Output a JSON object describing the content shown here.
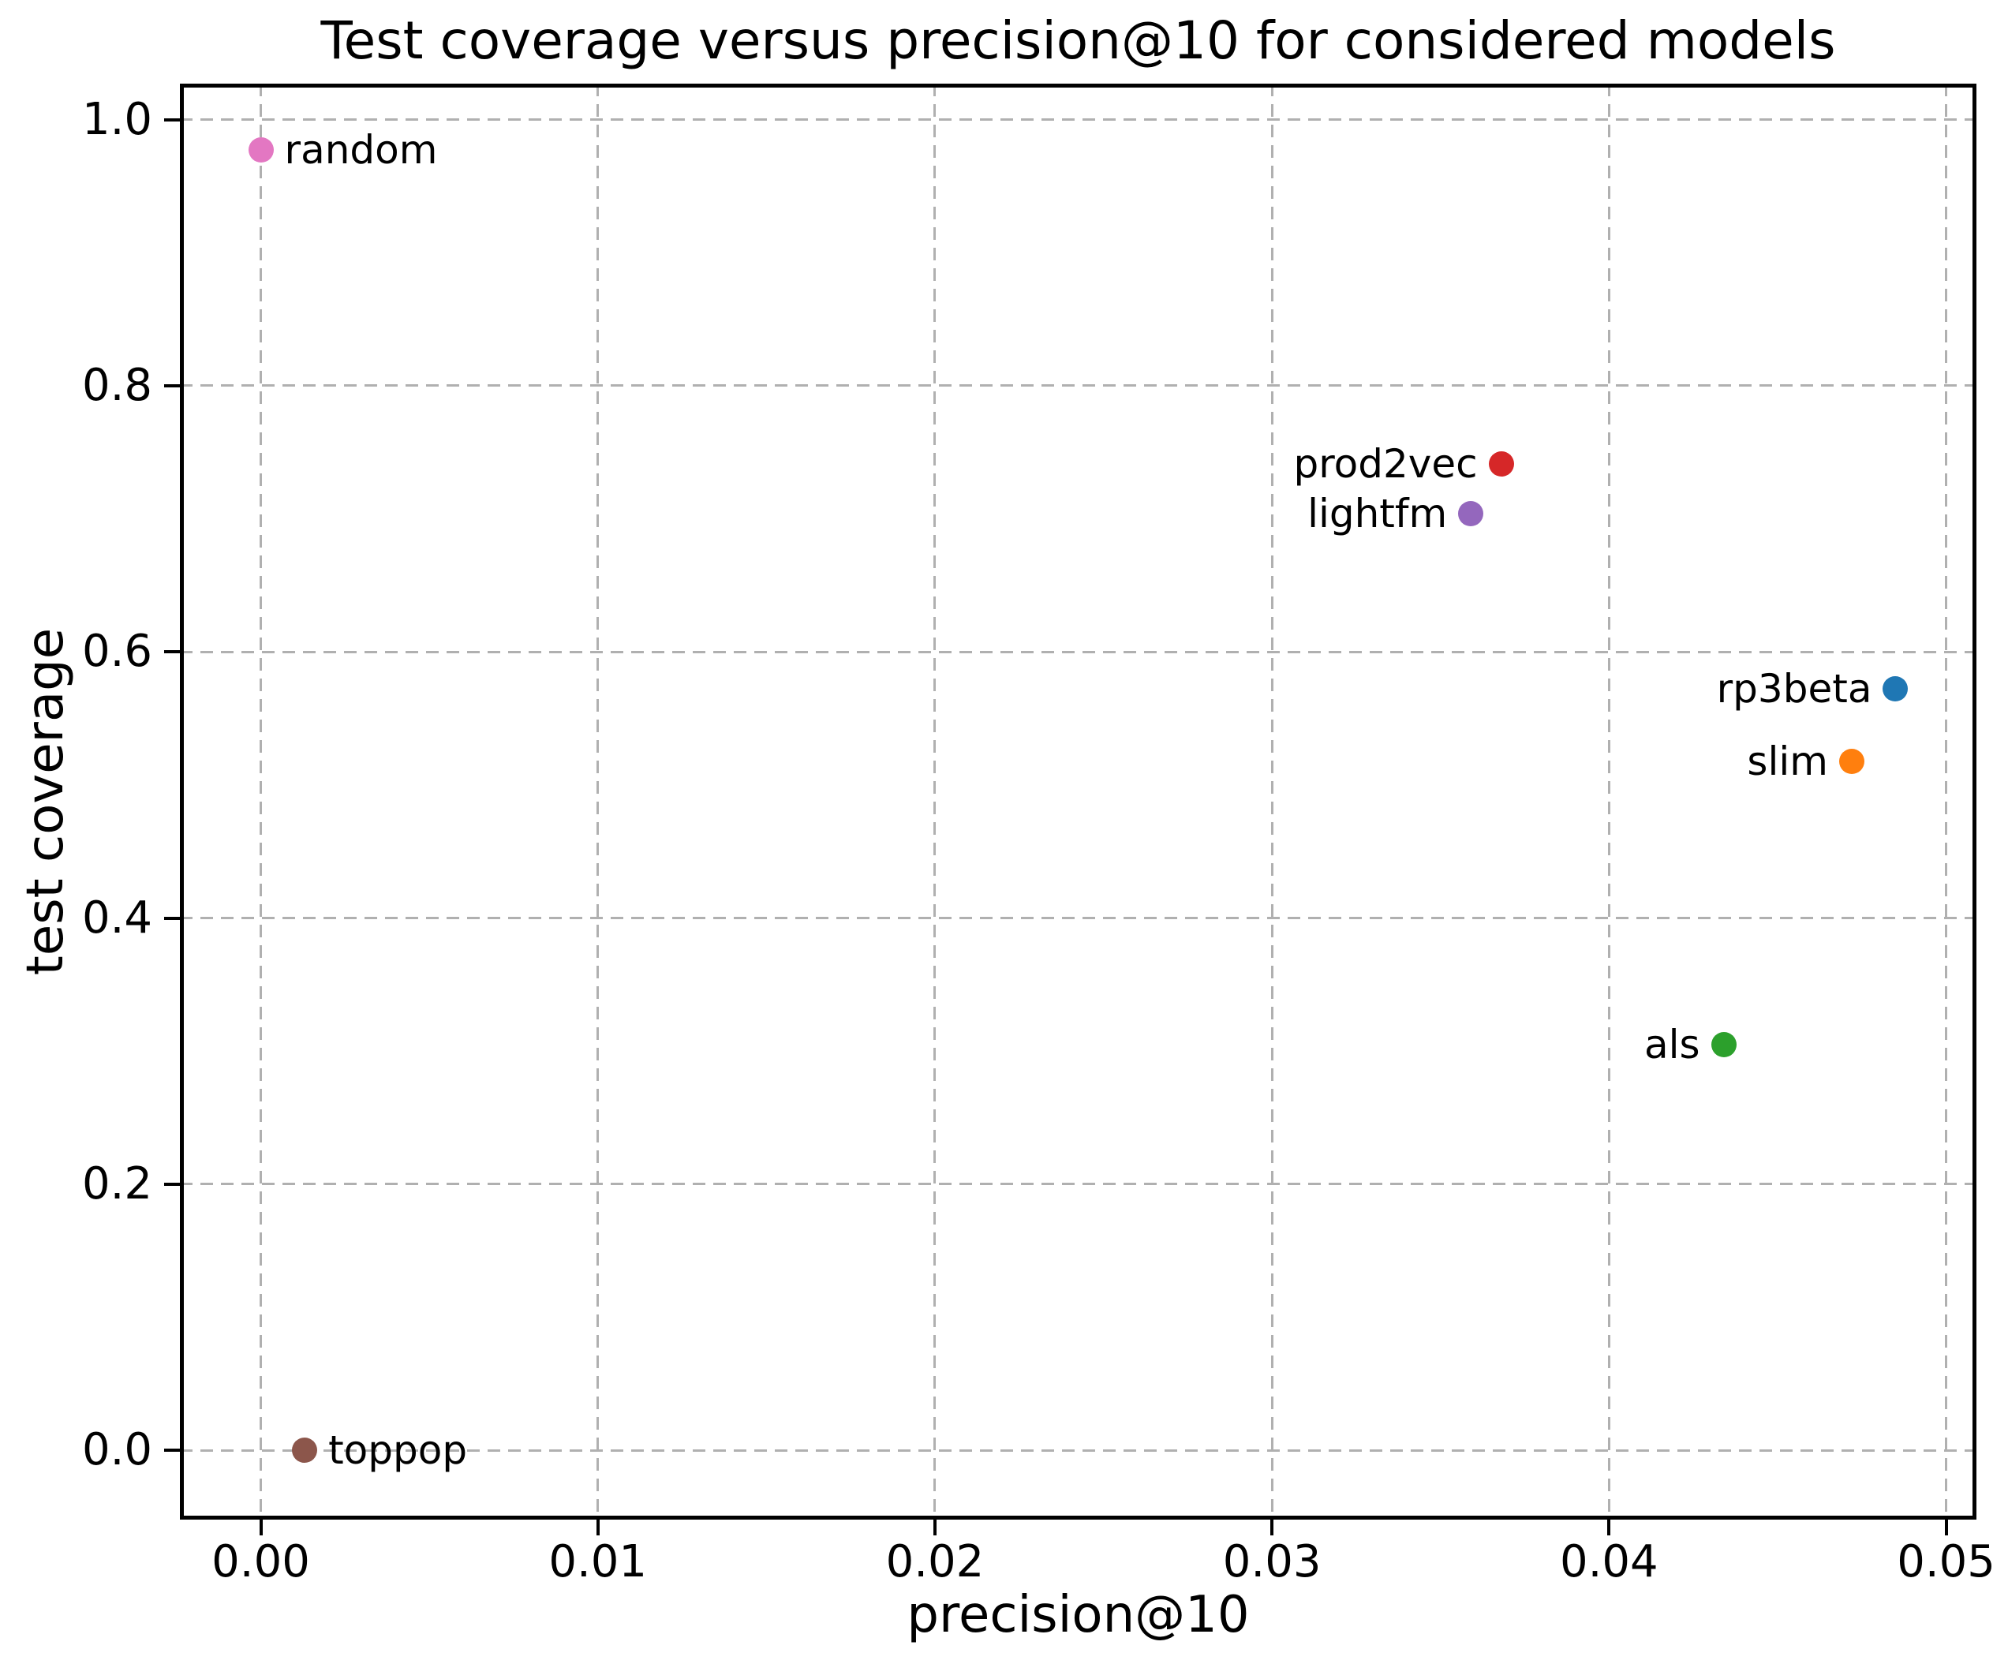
{
  "chart_data": {
    "type": "scatter",
    "title": "Test coverage versus precision@10 for considered models",
    "xlabel": "precision@10",
    "ylabel": "test coverage",
    "xlim": [
      -0.0024,
      0.0509
    ],
    "ylim": [
      -0.052,
      1.027
    ],
    "grid": true,
    "grid_style": "dashed",
    "grid_color": "#b0b0b0",
    "spine_color": "#000000",
    "background_color": "#ffffff",
    "legend": false,
    "xticks": [
      {
        "value": 0.0,
        "label": "0.00"
      },
      {
        "value": 0.01,
        "label": "0.01"
      },
      {
        "value": 0.02,
        "label": "0.02"
      },
      {
        "value": 0.03,
        "label": "0.03"
      },
      {
        "value": 0.04,
        "label": "0.04"
      },
      {
        "value": 0.05,
        "label": "0.05"
      }
    ],
    "yticks": [
      {
        "value": 0.0,
        "label": "0.0"
      },
      {
        "value": 0.2,
        "label": "0.2"
      },
      {
        "value": 0.4,
        "label": "0.4"
      },
      {
        "value": 0.6,
        "label": "0.6"
      },
      {
        "value": 0.8,
        "label": "0.8"
      },
      {
        "value": 1.0,
        "label": "1.0"
      }
    ],
    "points": [
      {
        "name": "random",
        "x": 0.0,
        "y": 0.977,
        "color": "#e377c2",
        "label_side": "right"
      },
      {
        "name": "toppop",
        "x": 0.0013,
        "y": 0.0,
        "color": "#8c564b",
        "label_side": "right"
      },
      {
        "name": "prod2vec",
        "x": 0.0368,
        "y": 0.741,
        "color": "#d62728",
        "label_side": "left"
      },
      {
        "name": "lightfm",
        "x": 0.0359,
        "y": 0.704,
        "color": "#9467bd",
        "label_side": "left"
      },
      {
        "name": "rp3beta",
        "x": 0.0485,
        "y": 0.572,
        "color": "#1f77b4",
        "label_side": "left"
      },
      {
        "name": "slim",
        "x": 0.0472,
        "y": 0.518,
        "color": "#ff7f0e",
        "label_side": "left"
      },
      {
        "name": "als",
        "x": 0.0434,
        "y": 0.305,
        "color": "#2ca02c",
        "label_side": "left"
      }
    ]
  }
}
